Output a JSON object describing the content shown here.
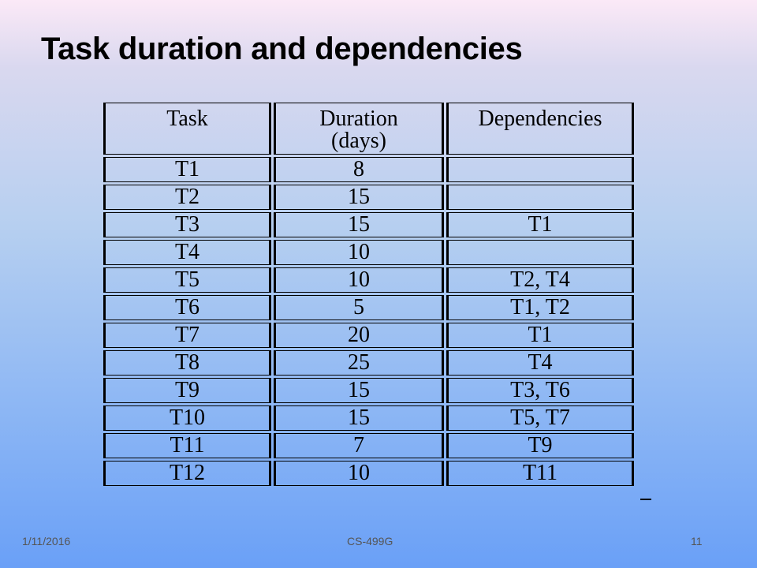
{
  "slide": {
    "title": "Task duration and dependencies"
  },
  "table": {
    "headers": {
      "task": "Task",
      "duration_line1": "Duration",
      "duration_line2": "(days)",
      "dependencies": "Dependencies"
    },
    "rows": [
      {
        "task": "T1",
        "duration": "8",
        "dependencies": ""
      },
      {
        "task": "T2",
        "duration": "15",
        "dependencies": ""
      },
      {
        "task": "T3",
        "duration": "15",
        "dependencies": "T1"
      },
      {
        "task": "T4",
        "duration": "10",
        "dependencies": ""
      },
      {
        "task": "T5",
        "duration": "10",
        "dependencies": "T2, T4"
      },
      {
        "task": "T6",
        "duration": "5",
        "dependencies": "T1, T2"
      },
      {
        "task": "T7",
        "duration": "20",
        "dependencies": "T1"
      },
      {
        "task": "T8",
        "duration": "25",
        "dependencies": "T4"
      },
      {
        "task": "T9",
        "duration": "15",
        "dependencies": "T3, T6"
      },
      {
        "task": "T10",
        "duration": "15",
        "dependencies": "T5, T7"
      },
      {
        "task": "T11",
        "duration": "7",
        "dependencies": "T9"
      },
      {
        "task": "T12",
        "duration": "10",
        "dependencies": "T11"
      }
    ]
  },
  "footer": {
    "date": "1/11/2016",
    "course": "CS-499G",
    "page": "11"
  }
}
